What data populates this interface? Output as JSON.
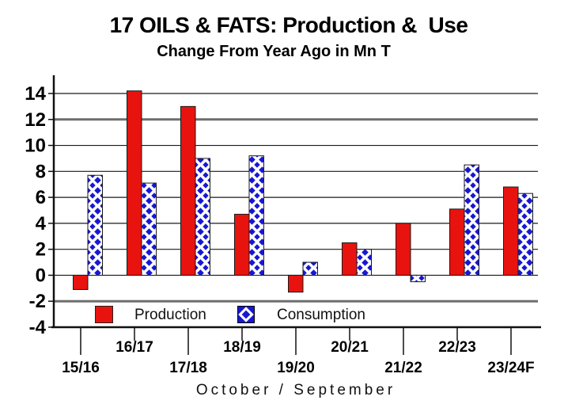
{
  "chart_data": {
    "type": "bar",
    "title": "17 OILS & FATS: Production &  Use",
    "subtitle": "Change From Year Ago in Mn T",
    "xlabel": "October / September",
    "categories": [
      "15/16",
      "16/17",
      "17/18",
      "18/19",
      "19/20",
      "20/21",
      "21/22",
      "22/23",
      "23/24F"
    ],
    "series": [
      {
        "name": "Production",
        "color": "#e8130f",
        "fill_style": "solid",
        "values": [
          -1.1,
          14.2,
          13.0,
          4.7,
          -1.3,
          2.5,
          4.0,
          5.1,
          6.8
        ]
      },
      {
        "name": "Consumption",
        "color": "#1717d3",
        "fill_style": "diamond-pattern",
        "values": [
          7.7,
          7.1,
          9.0,
          9.2,
          1.0,
          2.0,
          -0.5,
          8.5,
          6.3
        ]
      }
    ],
    "ylim": [
      -4,
      14
    ],
    "ytick_step": 2,
    "ytick_labels": [
      "14",
      "12",
      "10",
      "8",
      "6",
      "4",
      "2",
      "0",
      "-2",
      "-4"
    ],
    "emphasized_gridlines": [
      12,
      -2
    ],
    "grid": true,
    "legend_position": "bottom-inside",
    "x_label_rows": "staggered",
    "axis_colors": {
      "grid": "#1a1a1a",
      "grid_emphasis": "#6e6e6e",
      "axis": "#111111",
      "text": "#000000"
    }
  }
}
